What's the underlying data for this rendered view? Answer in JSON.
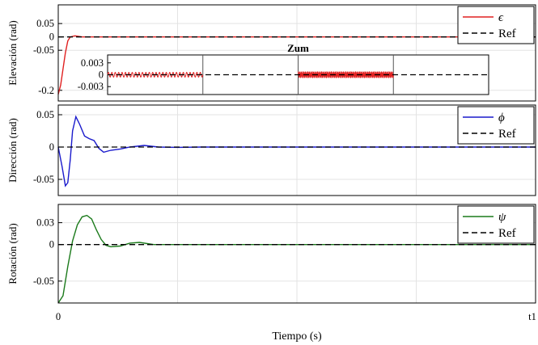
{
  "chart_data": [
    {
      "type": "line",
      "ylabel": "Elevación (rad)",
      "x_ticks": [
        "0",
        "t1"
      ],
      "y_ticks": [
        "0.05",
        "0",
        "-0.05",
        "-0.2"
      ],
      "ylim": [
        -0.24,
        0.12
      ],
      "legend": [
        "ϵ",
        "Ref"
      ],
      "series": [
        {
          "name": "ϵ",
          "color": "#e02020",
          "points": [
            [
              0.0,
              -0.215
            ],
            [
              0.005,
              -0.18
            ],
            [
              0.01,
              -0.12
            ],
            [
              0.015,
              -0.06
            ],
            [
              0.02,
              -0.015
            ],
            [
              0.025,
              0.0
            ],
            [
              0.035,
              0.004
            ],
            [
              0.05,
              0.0
            ],
            [
              1.0,
              0.0
            ]
          ]
        },
        {
          "name": "Ref",
          "color": "#000000",
          "style": "dashed",
          "points": [
            [
              0,
              0
            ],
            [
              1,
              0
            ]
          ]
        }
      ],
      "inset": {
        "title": "Zum",
        "y_ticks": [
          "0.003",
          "0",
          "-0.003"
        ],
        "ylim": [
          -0.005,
          0.005
        ],
        "segments": [
          {
            "x_range": [
              0.0,
              0.25
            ],
            "amplitude": 0.0006,
            "cycles": 28
          },
          {
            "x_range": [
              0.5,
              0.75
            ],
            "amplitude": 0.0008,
            "cycles": 70
          }
        ]
      }
    },
    {
      "type": "line",
      "ylabel": "Dirección (rad)",
      "y_ticks": [
        "0.05",
        "0",
        "-0.05"
      ],
      "ylim": [
        -0.075,
        0.065
      ],
      "legend": [
        "ϕ",
        "Ref"
      ],
      "series": [
        {
          "name": "ϕ",
          "color": "#1a1acc",
          "points": [
            [
              0.0,
              0.0
            ],
            [
              0.008,
              -0.03
            ],
            [
              0.015,
              -0.06
            ],
            [
              0.02,
              -0.055
            ],
            [
              0.025,
              -0.02
            ],
            [
              0.03,
              0.025
            ],
            [
              0.037,
              0.047
            ],
            [
              0.045,
              0.035
            ],
            [
              0.055,
              0.017
            ],
            [
              0.065,
              0.013
            ],
            [
              0.075,
              0.01
            ],
            [
              0.085,
              -0.002
            ],
            [
              0.095,
              -0.008
            ],
            [
              0.11,
              -0.005
            ],
            [
              0.13,
              -0.003
            ],
            [
              0.15,
              0.0
            ],
            [
              0.18,
              0.0025
            ],
            [
              0.21,
              0.0
            ],
            [
              0.25,
              -0.0005
            ],
            [
              0.3,
              0.0
            ],
            [
              1.0,
              0.0
            ]
          ]
        },
        {
          "name": "Ref",
          "color": "#000000",
          "style": "dashed",
          "points": [
            [
              0,
              0
            ],
            [
              1,
              0
            ]
          ]
        }
      ]
    },
    {
      "type": "line",
      "ylabel": "Rotación (rad)",
      "xlabel": "Tiempo (s)",
      "y_ticks": [
        "0.03",
        "0",
        "-0.05"
      ],
      "ylim": [
        -0.08,
        0.055
      ],
      "legend": [
        "ψ",
        "Ref"
      ],
      "series": [
        {
          "name": "ψ",
          "color": "#1b7a1b",
          "points": [
            [
              0.0,
              -0.08
            ],
            [
              0.01,
              -0.07
            ],
            [
              0.02,
              -0.03
            ],
            [
              0.03,
              0.005
            ],
            [
              0.04,
              0.027
            ],
            [
              0.05,
              0.038
            ],
            [
              0.06,
              0.04
            ],
            [
              0.07,
              0.035
            ],
            [
              0.08,
              0.02
            ],
            [
              0.09,
              0.007
            ],
            [
              0.1,
              -0.001
            ],
            [
              0.11,
              -0.003
            ],
            [
              0.13,
              -0.002
            ],
            [
              0.15,
              0.002
            ],
            [
              0.17,
              0.003
            ],
            [
              0.2,
              0.0
            ],
            [
              0.25,
              0.0
            ],
            [
              1.0,
              0.0
            ]
          ]
        },
        {
          "name": "Ref",
          "color": "#000000",
          "style": "dashed",
          "points": [
            [
              0,
              0
            ],
            [
              1,
              0
            ]
          ]
        }
      ]
    }
  ]
}
